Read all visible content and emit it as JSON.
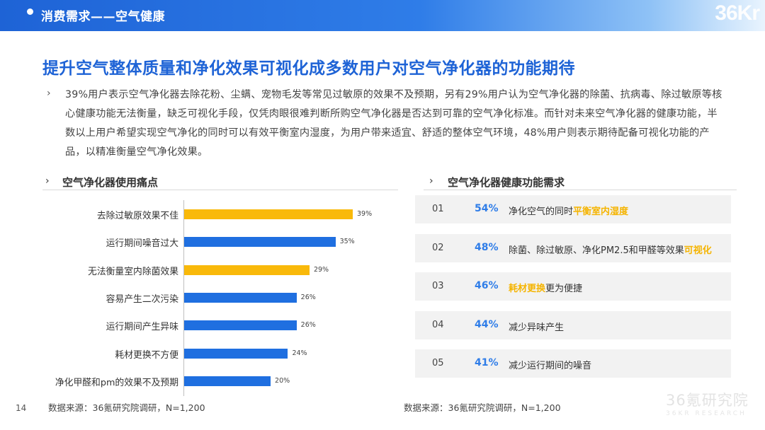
{
  "header": {
    "title": "消费需求——空气健康",
    "logo_text": "36Kr"
  },
  "main_title": "提升空气整体质量和净化效果可视化成多数用户对空气净化器的功能期待",
  "intro": {
    "arrow": "›",
    "text": "39%用户表示空气净化器去除花粉、尘螨、宠物毛发等常见过敏原的效果不及预期，另有29%用户认为空气净化器的除菌、抗病毒、除过敏原等核心健康功能无法衡量，缺乏可视化手段，仅凭肉眼很难判断所购空气净化器是否达到可靠的空气净化标准。而针对未来空气净化器的健康功能，半数以上用户希望实现空气净化的同时可以有效平衡室内湿度，为用户带来适宜、舒适的整体空气环境，48%用户则表示期待配备可视化功能的产品，以精准衡量空气净化效果。"
  },
  "left_section": {
    "arrow": "›",
    "title": "空气净化器使用痛点",
    "source": "数据来源：36氪研究院调研，N=1,200"
  },
  "right_section": {
    "arrow": "›",
    "title": "空气净化器健康功能需求",
    "source": "数据来源：36氪研究院调研，N=1,200"
  },
  "colors": {
    "accent": "#1e63d6",
    "bar_blue": "#1f6fe0",
    "bar_yellow": "#f9b90a",
    "pct_blue": "#2f7de8",
    "highlight": "#f5b400"
  },
  "chart_data": {
    "type": "bar",
    "orientation": "horizontal",
    "categories": [
      "去除过敏原效果不佳",
      "运行期间噪音过大",
      "无法衡量室内除菌效果",
      "容易产生二次污染",
      "运行期间产生异味",
      "耗材更换不方便",
      "净化甲醛和pm的效果不及预期"
    ],
    "values": [
      39,
      35,
      29,
      26,
      26,
      24,
      20
    ],
    "value_labels": [
      "39%",
      "35%",
      "29%",
      "26%",
      "26%",
      "24%",
      "20%"
    ],
    "highlighted": [
      true,
      false,
      true,
      false,
      false,
      false,
      false
    ],
    "xlim": [
      0,
      40
    ]
  },
  "needs": [
    {
      "num": "01",
      "pct": "54%",
      "text_before": "净化空气的同时",
      "highlight": "平衡室内湿度",
      "text_after": ""
    },
    {
      "num": "02",
      "pct": "48%",
      "text_before": "除菌、除过敏原、净化PM2.5和甲醛等效果",
      "highlight": "可视化",
      "text_after": ""
    },
    {
      "num": "03",
      "pct": "46%",
      "text_before": "",
      "highlight": "耗材更换",
      "text_after": "更为便捷"
    },
    {
      "num": "04",
      "pct": "44%",
      "text_before": "减少异味产生",
      "highlight": "",
      "text_after": ""
    },
    {
      "num": "05",
      "pct": "41%",
      "text_before": "减少运行期间的噪音",
      "highlight": "",
      "text_after": ""
    }
  ],
  "page_number": "14",
  "watermark": {
    "main": "36氪研究院",
    "sub": "36KR RESEARCH"
  }
}
